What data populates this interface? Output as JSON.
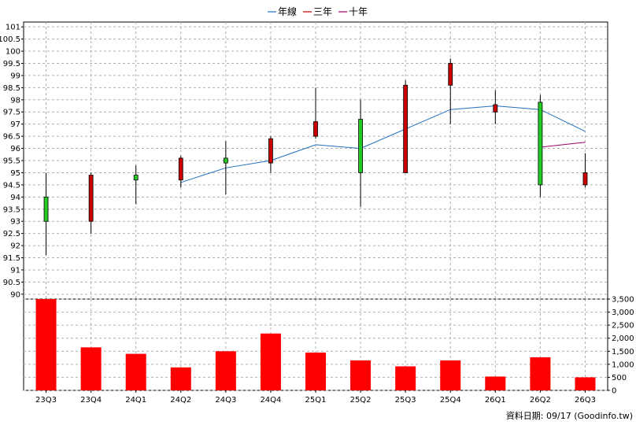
{
  "legend": {
    "items": [
      {
        "label": "年線",
        "color": "#1f6fbf"
      },
      {
        "label": "三年",
        "color": "#cc0000"
      },
      {
        "label": "十年",
        "color": "#990066"
      }
    ]
  },
  "footer": "資料日期: 09/17  (Goodinfo.tw)",
  "chart_data": [
    {
      "type": "candlestick",
      "categories": [
        "23Q3",
        "23Q4",
        "24Q1",
        "24Q2",
        "24Q3",
        "24Q4",
        "25Q1",
        "25Q2",
        "25Q3",
        "25Q4",
        "26Q1",
        "26Q2",
        "26Q3"
      ],
      "ylim": [
        89.8,
        101.2
      ],
      "yticks": [
        90,
        90.5,
        91,
        91.5,
        92,
        92.5,
        93,
        93.5,
        94,
        94.5,
        95,
        95.5,
        96,
        96.5,
        97,
        97.5,
        98,
        98.5,
        99,
        99.5,
        100,
        100.5,
        101
      ],
      "grid": true,
      "up_color": "#22cc22",
      "down_color": "#cc0000",
      "candles": [
        {
          "open": 94.0,
          "high": 95.0,
          "low": 91.6,
          "close": 93.0,
          "color": "green"
        },
        {
          "open": 93.0,
          "high": 95.0,
          "low": 92.5,
          "close": 94.9,
          "color": "red"
        },
        {
          "open": 94.9,
          "high": 95.3,
          "low": 93.7,
          "close": 94.7,
          "color": "green"
        },
        {
          "open": 94.7,
          "high": 95.7,
          "low": 94.4,
          "close": 95.6,
          "color": "red"
        },
        {
          "open": 95.6,
          "high": 96.3,
          "low": 94.1,
          "close": 95.4,
          "color": "green"
        },
        {
          "open": 95.4,
          "high": 96.5,
          "low": 95.0,
          "close": 96.4,
          "color": "red"
        },
        {
          "open": 96.5,
          "high": 98.5,
          "low": 96.4,
          "close": 97.1,
          "color": "red"
        },
        {
          "open": 97.2,
          "high": 98.0,
          "low": 93.6,
          "close": 95.0,
          "color": "green"
        },
        {
          "open": 95.0,
          "high": 98.8,
          "low": 95.0,
          "close": 98.6,
          "color": "red"
        },
        {
          "open": 98.6,
          "high": 99.7,
          "low": 97.0,
          "close": 99.5,
          "color": "red"
        },
        {
          "open": 97.5,
          "high": 98.4,
          "low": 97.0,
          "close": 97.8,
          "color": "red"
        },
        {
          "open": 97.9,
          "high": 98.2,
          "low": 94.0,
          "close": 94.5,
          "color": "green"
        },
        {
          "open": 94.5,
          "high": 95.8,
          "low": 94.4,
          "close": 95.0,
          "color": "red"
        }
      ],
      "series": [
        {
          "name": "年線",
          "color": "#1f6fbf",
          "values": [
            null,
            null,
            null,
            94.6,
            95.2,
            95.5,
            96.15,
            96.0,
            96.8,
            97.6,
            97.75,
            97.6,
            96.7
          ]
        },
        {
          "name": "三年",
          "color": "#cc0000",
          "values": [
            null,
            null,
            null,
            null,
            null,
            null,
            null,
            null,
            null,
            null,
            null,
            null,
            null
          ]
        },
        {
          "name": "十年",
          "color": "#990066",
          "values": [
            null,
            null,
            null,
            null,
            null,
            null,
            null,
            null,
            null,
            null,
            null,
            96.05,
            96.25
          ]
        }
      ]
    },
    {
      "type": "bar",
      "categories": [
        "23Q3",
        "23Q4",
        "24Q1",
        "24Q2",
        "24Q3",
        "24Q4",
        "25Q1",
        "25Q2",
        "25Q3",
        "25Q4",
        "26Q1",
        "26Q2",
        "26Q3"
      ],
      "values": [
        3500,
        1650,
        1400,
        880,
        1500,
        2180,
        1450,
        1150,
        920,
        1150,
        530,
        1270,
        500
      ],
      "ylim": [
        0,
        3500
      ],
      "yticks": [
        "0",
        "500",
        "1,000",
        "1,500",
        "2,000",
        "2,500",
        "3,000",
        "3,500"
      ],
      "bar_color": "#ff0000",
      "grid": true
    }
  ]
}
